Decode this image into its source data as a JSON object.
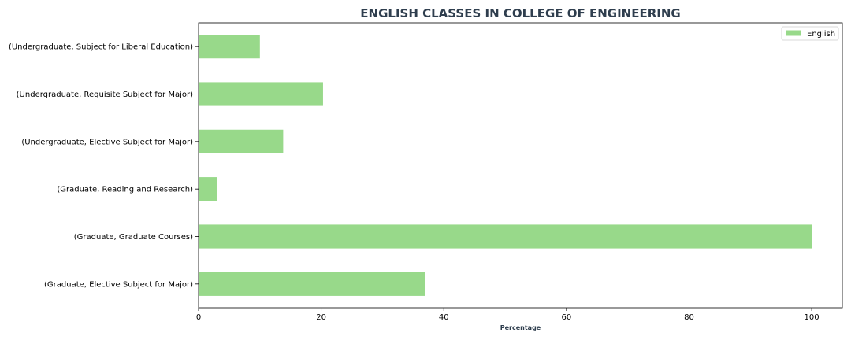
{
  "chart_data": {
    "type": "bar",
    "orientation": "horizontal",
    "title": "ENGLISH CLASSES IN COLLEGE OF ENGINEERING",
    "xlabel": "Percentage",
    "ylabel": "",
    "xlim": [
      0,
      105
    ],
    "xticks": [
      0,
      20,
      40,
      60,
      80,
      100
    ],
    "categories": [
      "(Undergraduate, Subject for Liberal Education)",
      "(Undergraduate, Requisite Subject for Major)",
      "(Undergraduate, Elective Subject for Major)",
      "(Graduate, Reading and Research)",
      "(Graduate, Graduate Courses)",
      "(Graduate, Elective Subject for Major)"
    ],
    "series": [
      {
        "name": "English",
        "color": "#98d98a",
        "values": [
          10,
          20.3,
          13.8,
          3,
          100,
          37
        ]
      }
    ],
    "legend_position": "top-right",
    "grid": false
  }
}
